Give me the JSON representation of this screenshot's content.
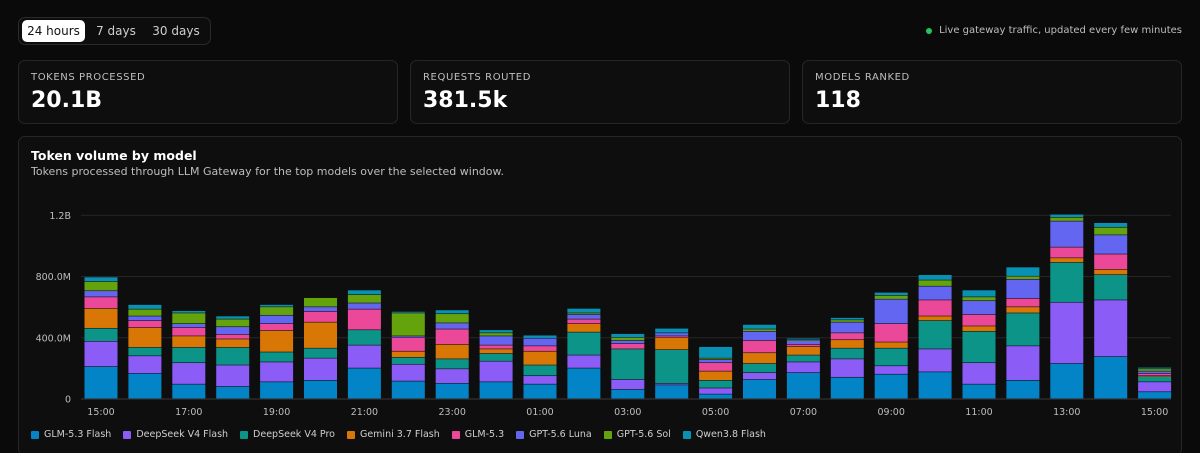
{
  "range": {
    "options": [
      "24 hours",
      "7 days",
      "30 days"
    ],
    "selected": 0
  },
  "live_text": "Live gateway traffic, updated every few minutes",
  "colors": {
    "live_dot": "#22c55e"
  },
  "stats": [
    {
      "label": "TOKENS PROCESSED",
      "value": "20.1B"
    },
    {
      "label": "REQUESTS ROUTED",
      "value": "381.5k"
    },
    {
      "label": "MODELS RANKED",
      "value": "118"
    }
  ],
  "chart": {
    "title": "Token volume by model",
    "subtitle": "Tokens processed through LLM Gateway for the top models over the selected window."
  },
  "chart_data": {
    "type": "bar",
    "stacked": true,
    "ylim": [
      0,
      1300
    ],
    "yunit": "M",
    "yticks": [
      0,
      400,
      800,
      1200
    ],
    "ytick_labels": [
      "0",
      "400.0M",
      "800.0M",
      "1.2B"
    ],
    "categories": [
      "15:00",
      "16:00",
      "17:00",
      "18:00",
      "19:00",
      "20:00",
      "21:00",
      "22:00",
      "23:00",
      "00:00",
      "01:00",
      "02:00",
      "03:00",
      "04:00",
      "05:00",
      "06:00",
      "07:00",
      "08:00",
      "09:00",
      "10:00",
      "11:00",
      "12:00",
      "13:00",
      "14:00",
      "15:00"
    ],
    "xtick_labels": [
      "15:00",
      "",
      "17:00",
      "",
      "19:00",
      "",
      "21:00",
      "",
      "23:00",
      "",
      "01:00",
      "",
      "03:00",
      "",
      "05:00",
      "",
      "07:00",
      "",
      "09:00",
      "",
      "11:00",
      "",
      "13:00",
      "",
      "15:00"
    ],
    "grid": true,
    "legend_position": "bottom-left",
    "series": [
      {
        "name": "GLM-5.3 Flash",
        "color": "#0284c7",
        "values": [
          210,
          165,
          95,
          80,
          110,
          120,
          200,
          115,
          100,
          110,
          95,
          200,
          60,
          90,
          30,
          125,
          170,
          140,
          160,
          175,
          95,
          120,
          230,
          275,
          45
        ]
      },
      {
        "name": "DeepSeek V4 Flash",
        "color": "#8b5cf6",
        "values": [
          165,
          115,
          140,
          140,
          130,
          145,
          150,
          110,
          95,
          135,
          55,
          85,
          65,
          10,
          40,
          45,
          70,
          120,
          55,
          150,
          140,
          225,
          400,
          370,
          65
        ]
      },
      {
        "name": "DeepSeek V4 Pro",
        "color": "#0d9488",
        "values": [
          85,
          55,
          100,
          115,
          65,
          65,
          100,
          45,
          65,
          50,
          70,
          150,
          200,
          220,
          50,
          60,
          45,
          70,
          115,
          185,
          205,
          215,
          260,
          165,
          35
        ]
      },
      {
        "name": "Gemini 3.7 Flash",
        "color": "#d97706",
        "values": [
          130,
          130,
          75,
          55,
          140,
          170,
          0,
          40,
          95,
          30,
          90,
          55,
          0,
          80,
          60,
          70,
          55,
          55,
          40,
          30,
          35,
          40,
          30,
          35,
          5
        ]
      },
      {
        "name": "GLM-5.3",
        "color": "#ec4899",
        "values": [
          75,
          45,
          55,
          30,
          45,
          70,
          135,
          90,
          100,
          25,
          35,
          30,
          35,
          10,
          55,
          80,
          15,
          45,
          120,
          105,
          75,
          55,
          70,
          100,
          15
        ]
      },
      {
        "name": "GPT-5.6 Luna",
        "color": "#6366f1",
        "values": [
          40,
          30,
          25,
          50,
          55,
          30,
          40,
          10,
          40,
          60,
          50,
          30,
          20,
          20,
          20,
          60,
          25,
          70,
          160,
          90,
          90,
          125,
          170,
          125,
          15
        ]
      },
      {
        "name": "GPT-5.6 Sol",
        "color": "#65a30d",
        "values": [
          60,
          45,
          70,
          50,
          55,
          60,
          55,
          150,
          60,
          20,
          0,
          10,
          20,
          0,
          10,
          15,
          5,
          15,
          25,
          40,
          25,
          20,
          25,
          50,
          15
        ]
      },
      {
        "name": "Qwen3.8 Flash",
        "color": "#0891b2",
        "values": [
          30,
          30,
          15,
          20,
          15,
          0,
          30,
          10,
          25,
          20,
          20,
          30,
          25,
          30,
          75,
          30,
          10,
          15,
          20,
          35,
          45,
          60,
          20,
          30,
          10
        ]
      }
    ]
  }
}
